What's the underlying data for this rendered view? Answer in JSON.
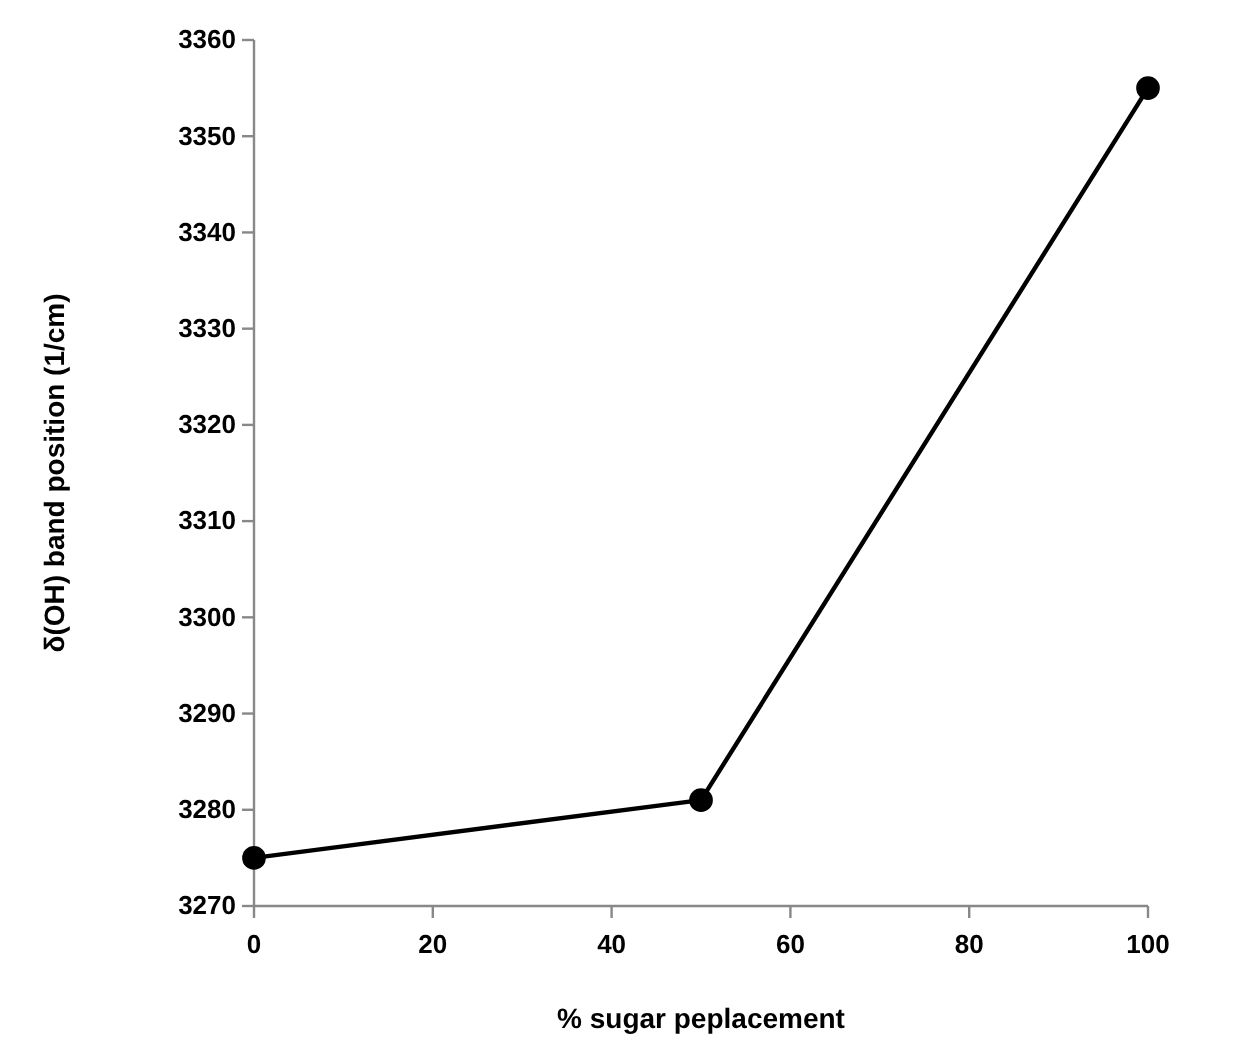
{
  "chart_data": {
    "type": "line",
    "xlabel": "% sugar peplacement",
    "ylabel": "δ(OH) band position (1/cm)",
    "x": [
      0,
      50,
      100
    ],
    "series": [
      {
        "color": "#000000",
        "values": [
          3275,
          3281,
          3355
        ]
      }
    ],
    "xlim": [
      0,
      100
    ],
    "xticks": [
      0,
      20,
      40,
      60,
      80,
      100
    ],
    "ylim": [
      3270,
      3360
    ],
    "yticks": [
      3270,
      3280,
      3290,
      3300,
      3310,
      3320,
      3330,
      3340,
      3350,
      3360
    ],
    "grid": false,
    "marker": "circle",
    "line_style": "solid"
  }
}
